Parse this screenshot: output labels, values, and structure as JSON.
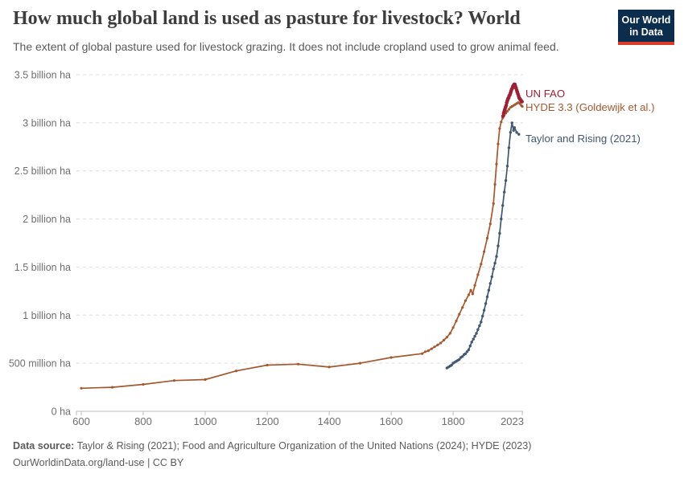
{
  "header": {
    "title": "How much global land is used as pasture for livestock? World",
    "subtitle": "The extent of global pasture used for livestock grazing. It does not include cropland used to grow animal feed.",
    "logo": {
      "line1": "Our World",
      "line2": "in Data",
      "background_color": "#0D2D4F",
      "accent_color": "#D93C2B",
      "text_color": "#FFFFFF"
    }
  },
  "chart_data": {
    "type": "line",
    "title": "How much global land is used as pasture for livestock? World",
    "xlabel": "",
    "ylabel": "",
    "unit": "hectares",
    "x_domain": [
      600,
      2023
    ],
    "y_domain": [
      0,
      3.5
    ],
    "grid": "horizontal-dashed",
    "legend_position": "right-of-line-ends",
    "x_ticks": [
      {
        "value": 600,
        "label": "600"
      },
      {
        "value": 800,
        "label": "800"
      },
      {
        "value": 1000,
        "label": "1000"
      },
      {
        "value": 1200,
        "label": "1200"
      },
      {
        "value": 1400,
        "label": "1400"
      },
      {
        "value": 1600,
        "label": "1600"
      },
      {
        "value": 1800,
        "label": "1800"
      },
      {
        "value": 2023,
        "label": "2023"
      }
    ],
    "y_ticks": [
      {
        "value": 0,
        "label": "0 ha"
      },
      {
        "value": 0.5,
        "label": "500 million ha"
      },
      {
        "value": 1,
        "label": "1 billion ha"
      },
      {
        "value": 1.5,
        "label": "1.5 billion ha"
      },
      {
        "value": 2,
        "label": "2 billion ha"
      },
      {
        "value": 2.5,
        "label": "2.5 billion ha"
      },
      {
        "value": 3,
        "label": "3 billion ha"
      },
      {
        "value": 3.5,
        "label": "3.5 billion ha"
      }
    ],
    "value_unit": "billion ha",
    "series": [
      {
        "id": "un-fao",
        "name": "UN FAO",
        "color": "#9B2134",
        "line_width": 3,
        "marker_radius": 2.3,
        "points": [
          [
            1961,
            3.07
          ],
          [
            1963,
            3.1
          ],
          [
            1965,
            3.12
          ],
          [
            1967,
            3.14
          ],
          [
            1969,
            3.16
          ],
          [
            1971,
            3.18
          ],
          [
            1973,
            3.21
          ],
          [
            1975,
            3.23
          ],
          [
            1977,
            3.25
          ],
          [
            1979,
            3.26
          ],
          [
            1981,
            3.28
          ],
          [
            1983,
            3.29
          ],
          [
            1985,
            3.31
          ],
          [
            1987,
            3.33
          ],
          [
            1989,
            3.35
          ],
          [
            1991,
            3.36
          ],
          [
            1993,
            3.38
          ],
          [
            1995,
            3.39
          ],
          [
            1997,
            3.4
          ],
          [
            1999,
            3.4
          ],
          [
            2001,
            3.38
          ],
          [
            2003,
            3.36
          ],
          [
            2005,
            3.34
          ],
          [
            2007,
            3.32
          ],
          [
            2009,
            3.3
          ],
          [
            2011,
            3.28
          ],
          [
            2013,
            3.26
          ],
          [
            2015,
            3.25
          ],
          [
            2017,
            3.24
          ],
          [
            2019,
            3.23
          ],
          [
            2021,
            3.22
          ],
          [
            2022,
            3.22
          ]
        ]
      },
      {
        "id": "hyde-3-3",
        "name": "HYDE 3.3 (Goldewijk et al.)",
        "color": "#A5582F",
        "line_width": 1.7,
        "marker_radius": 1.6,
        "points": [
          [
            600,
            0.24
          ],
          [
            700,
            0.25
          ],
          [
            800,
            0.28
          ],
          [
            900,
            0.32
          ],
          [
            1000,
            0.33
          ],
          [
            1100,
            0.42
          ],
          [
            1200,
            0.48
          ],
          [
            1300,
            0.49
          ],
          [
            1400,
            0.46
          ],
          [
            1500,
            0.5
          ],
          [
            1600,
            0.56
          ],
          [
            1700,
            0.6
          ],
          [
            1710,
            0.62
          ],
          [
            1720,
            0.63
          ],
          [
            1730,
            0.65
          ],
          [
            1740,
            0.67
          ],
          [
            1750,
            0.69
          ],
          [
            1760,
            0.71
          ],
          [
            1770,
            0.74
          ],
          [
            1780,
            0.77
          ],
          [
            1790,
            0.81
          ],
          [
            1800,
            0.87
          ],
          [
            1810,
            0.94
          ],
          [
            1820,
            1.01
          ],
          [
            1830,
            1.08
          ],
          [
            1840,
            1.15
          ],
          [
            1850,
            1.21
          ],
          [
            1857,
            1.26
          ],
          [
            1863,
            1.22
          ],
          [
            1870,
            1.31
          ],
          [
            1880,
            1.42
          ],
          [
            1890,
            1.53
          ],
          [
            1900,
            1.66
          ],
          [
            1910,
            1.8
          ],
          [
            1920,
            1.95
          ],
          [
            1930,
            2.16
          ],
          [
            1935,
            2.36
          ],
          [
            1940,
            2.57
          ],
          [
            1945,
            2.78
          ],
          [
            1950,
            2.94
          ],
          [
            1955,
            3.01
          ],
          [
            1960,
            3.05
          ],
          [
            1965,
            3.08
          ],
          [
            1970,
            3.1
          ],
          [
            1975,
            3.12
          ],
          [
            1980,
            3.14
          ],
          [
            1985,
            3.16
          ],
          [
            1990,
            3.17
          ],
          [
            1995,
            3.18
          ],
          [
            2000,
            3.19
          ],
          [
            2005,
            3.2
          ],
          [
            2010,
            3.21
          ],
          [
            2015,
            3.2
          ],
          [
            2020,
            3.18
          ],
          [
            2023,
            3.17
          ]
        ]
      },
      {
        "id": "taylor-and-rising",
        "name": "Taylor and Rising (2021)",
        "color": "#405971",
        "line_width": 1.7,
        "marker_radius": 1.7,
        "points": [
          [
            1780,
            0.45
          ],
          [
            1785,
            0.46
          ],
          [
            1790,
            0.47
          ],
          [
            1795,
            0.48
          ],
          [
            1800,
            0.5
          ],
          [
            1805,
            0.51
          ],
          [
            1810,
            0.52
          ],
          [
            1815,
            0.53
          ],
          [
            1820,
            0.54
          ],
          [
            1825,
            0.56
          ],
          [
            1830,
            0.57
          ],
          [
            1835,
            0.59
          ],
          [
            1840,
            0.6
          ],
          [
            1845,
            0.62
          ],
          [
            1850,
            0.64
          ],
          [
            1855,
            0.68
          ],
          [
            1860,
            0.72
          ],
          [
            1865,
            0.75
          ],
          [
            1870,
            0.78
          ],
          [
            1875,
            0.81
          ],
          [
            1880,
            0.85
          ],
          [
            1885,
            0.89
          ],
          [
            1890,
            0.93
          ],
          [
            1895,
            0.99
          ],
          [
            1900,
            1.05
          ],
          [
            1905,
            1.12
          ],
          [
            1910,
            1.19
          ],
          [
            1915,
            1.26
          ],
          [
            1920,
            1.33
          ],
          [
            1925,
            1.4
          ],
          [
            1930,
            1.48
          ],
          [
            1935,
            1.54
          ],
          [
            1940,
            1.61
          ],
          [
            1945,
            1.72
          ],
          [
            1950,
            1.85
          ],
          [
            1955,
            2.0
          ],
          [
            1960,
            2.14
          ],
          [
            1965,
            2.28
          ],
          [
            1970,
            2.4
          ],
          [
            1975,
            2.55
          ],
          [
            1980,
            2.74
          ],
          [
            1985,
            2.9
          ],
          [
            1990,
            3.0
          ],
          [
            1995,
            2.92
          ],
          [
            1998,
            2.95
          ],
          [
            2005,
            2.9
          ],
          [
            2012,
            2.88
          ]
        ]
      }
    ]
  },
  "footer": {
    "datasource_label": "Data source:",
    "datasource_text": "Taylor & Rising (2021); Food and Agriculture Organization of the United Nations (2024); HYDE (2023)",
    "license_line": "OurWorldinData.org/land-use | CC BY"
  }
}
